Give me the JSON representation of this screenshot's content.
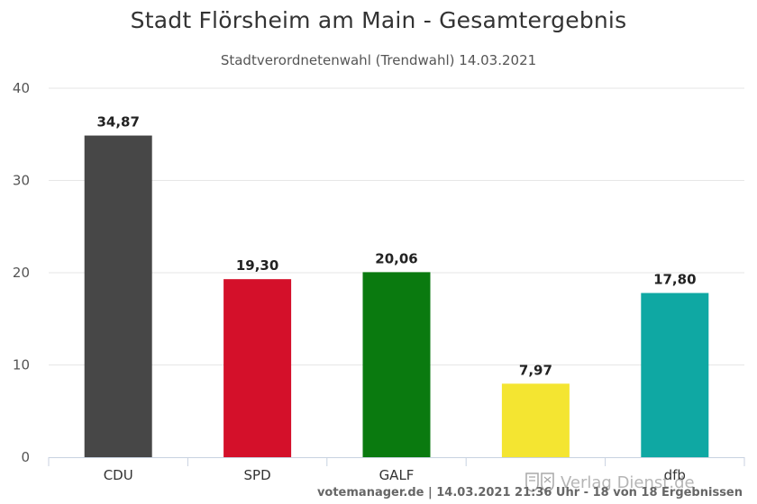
{
  "chart_data": {
    "type": "bar",
    "title": "Stadt Flörsheim am Main - Gesamtergebnis",
    "subtitle": "Stadtverordnetenwahl (Trendwahl) 14.03.2021",
    "categories": [
      "CDU",
      "SPD",
      "GALF",
      "",
      "dfb"
    ],
    "values": [
      34.87,
      19.3,
      20.06,
      7.97,
      17.8
    ],
    "value_labels": [
      "34,87",
      "19,30",
      "20,06",
      "7,97",
      "17,80"
    ],
    "colors": [
      "#474747",
      "#d4102a",
      "#0a7a0f",
      "#f4e531",
      "#0fa8a3"
    ],
    "ylim": [
      0,
      40
    ],
    "yticks": [
      0,
      10,
      20,
      30,
      40
    ],
    "grid": true,
    "legend": "none"
  },
  "credits": "votemanager.de | 14.03.2021 21:36 Uhr - 18 von 18 Ergebnissen",
  "watermark": "Verlag Dienst.de"
}
